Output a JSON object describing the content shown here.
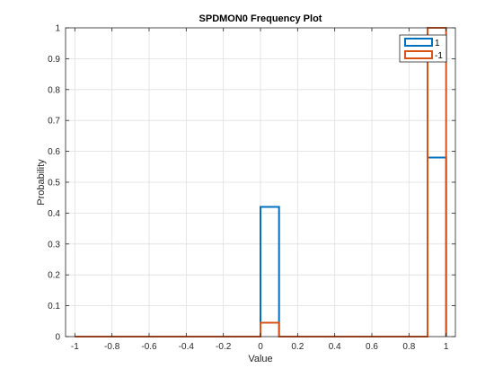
{
  "chart_data": {
    "type": "line",
    "title": "SPDMON0 Frequency Plot",
    "xlabel": "Value",
    "ylabel": "Probability",
    "xlim": [
      -1.05,
      1.05
    ],
    "ylim": [
      0,
      1
    ],
    "xticks": [
      -1,
      -0.8,
      -0.6,
      -0.4,
      -0.2,
      0,
      0.2,
      0.4,
      0.6,
      0.8,
      1
    ],
    "xtick_labels": [
      "-1",
      "-0.8",
      "-0.6",
      "-0.4",
      "-0.2",
      "0",
      "0.2",
      "0.4",
      "0.6",
      "0.8",
      "1"
    ],
    "yticks": [
      0,
      0.1,
      0.2,
      0.3,
      0.4,
      0.5,
      0.6,
      0.7,
      0.8,
      0.9,
      1
    ],
    "ytick_labels": [
      "0",
      "0.1",
      "0.2",
      "0.3",
      "0.4",
      "0.5",
      "0.6",
      "0.7",
      "0.8",
      "0.9",
      "1"
    ],
    "grid": true,
    "legend_position": "top-right",
    "series": [
      {
        "name": "1",
        "color": "#0072BD",
        "x": [
          -1,
          0,
          0,
          0.1,
          0.1,
          0.9,
          0.9,
          1,
          1
        ],
        "y": [
          0,
          0,
          0.42,
          0.42,
          0,
          0,
          0.58,
          0.58,
          0
        ]
      },
      {
        "name": "-1",
        "color": "#D95319",
        "x": [
          -1,
          0,
          0,
          0.1,
          0.1,
          0.9,
          0.9,
          1,
          1
        ],
        "y": [
          0,
          0,
          0.045,
          0.045,
          0,
          0,
          1,
          1,
          0
        ]
      }
    ]
  }
}
